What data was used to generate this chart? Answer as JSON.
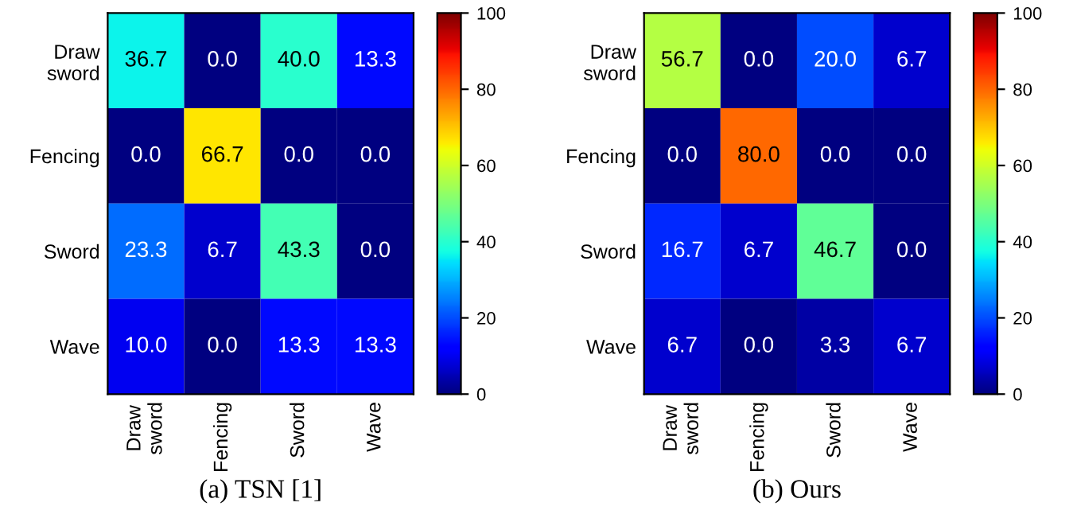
{
  "chart_data": [
    {
      "type": "heatmap",
      "xlabel": "(a) TSN [1]",
      "categories": [
        "Draw\nsword",
        "Fencing",
        "Sword",
        "Wave"
      ],
      "y_categories": [
        "Draw\nsword",
        "Fencing",
        "Sword",
        "Wave"
      ],
      "cells": [
        [
          36.7,
          0.0,
          40.0,
          13.3
        ],
        [
          0.0,
          66.7,
          0.0,
          0.0
        ],
        [
          23.3,
          6.7,
          43.3,
          0.0
        ],
        [
          10.0,
          0.0,
          13.3,
          13.3
        ]
      ],
      "cell_labels": [
        [
          "36.7",
          "0.0",
          "40.0",
          "13.3"
        ],
        [
          "0.0",
          "66.7",
          "0.0",
          "0.0"
        ],
        [
          "23.3",
          "6.7",
          "43.3",
          "0.0"
        ],
        [
          "10.0",
          "0.0",
          "13.3",
          "13.3"
        ]
      ],
      "clim": [
        0,
        100
      ],
      "cticks": [
        0,
        20,
        40,
        60,
        80,
        100
      ]
    },
    {
      "type": "heatmap",
      "xlabel": "(b) Ours",
      "categories": [
        "Draw\nsword",
        "Fencing",
        "Sword",
        "Wave"
      ],
      "y_categories": [
        "Draw\nsword",
        "Fencing",
        "Sword",
        "Wave"
      ],
      "cells": [
        [
          56.7,
          0.0,
          20.0,
          6.7
        ],
        [
          0.0,
          80.0,
          0.0,
          0.0
        ],
        [
          16.7,
          6.7,
          46.7,
          0.0
        ],
        [
          6.7,
          0.0,
          3.3,
          6.7
        ]
      ],
      "cell_labels": [
        [
          "56.7",
          "0.0",
          "20.0",
          "6.7"
        ],
        [
          "0.0",
          "80.0",
          "0.0",
          "0.0"
        ],
        [
          "16.7",
          "6.7",
          "46.7",
          "0.0"
        ],
        [
          "6.7",
          "0.0",
          "3.3",
          "6.7"
        ]
      ],
      "clim": [
        0,
        100
      ],
      "cticks": [
        0,
        20,
        40,
        60,
        80,
        100
      ]
    }
  ]
}
